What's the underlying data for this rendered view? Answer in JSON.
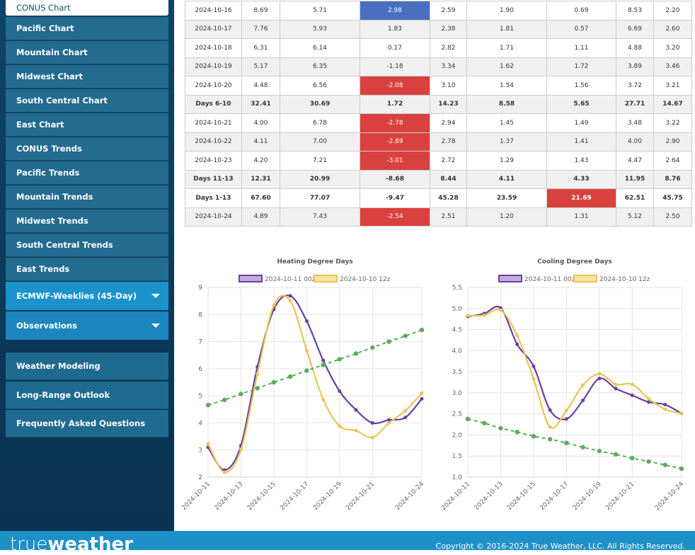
{
  "sidebar": {
    "active": "CONUS Chart",
    "items": [
      "Pacific Chart",
      "Mountain Chart",
      "Midwest Chart",
      "South Central Chart",
      "East Chart",
      "CONUS Trends",
      "Pacific Trends",
      "Mountain Trends",
      "Midwest Trends",
      "South Central Trends",
      "East Trends"
    ],
    "dropdowns": [
      "ECMWF-Weeklies (45-Day)",
      "Observations"
    ],
    "links": [
      "Weather Modeling",
      "Long-Range Outlook",
      "Frequently Asked Questions"
    ]
  },
  "table": {
    "rows": [
      {
        "cells": [
          "2024-10-16",
          "8.69",
          "5.71",
          {
            "text": "2.98",
            "color": "#4a6fc0"
          },
          "2.59",
          "1.90",
          "0.69",
          "8.53",
          "2.20"
        ]
      },
      {
        "cells": [
          "2024-10-17",
          "7.76",
          "5.93",
          "1.83",
          "2.38",
          "1.81",
          "0.57",
          "6.69",
          "2.60"
        ]
      },
      {
        "cells": [
          "2024-10-18",
          "6.31",
          "6.14",
          "0.17",
          "2.82",
          "1.71",
          "1.11",
          "4.88",
          "3.20"
        ]
      },
      {
        "cells": [
          "2024-10-19",
          "5.17",
          "6.35",
          "-1.18",
          "3.34",
          "1.62",
          "1.72",
          "3.89",
          "3.46"
        ]
      },
      {
        "cells": [
          "2024-10-20",
          "4.48",
          "6.56",
          {
            "text": "-2.08",
            "color": "#d9413f"
          },
          "3.10",
          "1.54",
          "1.56",
          "3.72",
          "3.21"
        ]
      },
      {
        "cells": [
          "Days 6-10",
          "32.41",
          "30.69",
          "1.72",
          "14.23",
          "8.58",
          "5.65",
          "27.71",
          "14.67"
        ],
        "bold": true
      },
      {
        "cells": [
          "2024-10-21",
          "4.00",
          "6.78",
          {
            "text": "-2.78",
            "color": "#d9413f"
          },
          "2.94",
          "1.45",
          "1.49",
          "3.48",
          "3.22"
        ]
      },
      {
        "cells": [
          "2024-10-22",
          "4.11",
          "7.00",
          {
            "text": "-2.89",
            "color": "#d9413f"
          },
          "2.78",
          "1.37",
          "1.41",
          "4.00",
          "2.90"
        ]
      },
      {
        "cells": [
          "2024-10-23",
          "4.20",
          "7.21",
          {
            "text": "-3.01",
            "color": "#d9413f"
          },
          "2.72",
          "1.29",
          "1.43",
          "4.47",
          "2.64"
        ]
      },
      {
        "cells": [
          "Days 11-13",
          "12.31",
          "20.99",
          "-8.68",
          "8.44",
          "4.11",
          "4.33",
          "11.95",
          "8.76"
        ],
        "bold": true
      },
      {
        "cells": [
          "Days 1-13",
          "67.60",
          "77.07",
          "-9.47",
          "45.28",
          "23.59",
          {
            "text": "21.69",
            "color": "#d9413f"
          },
          "62.51",
          "45.75"
        ],
        "bold": true
      },
      {
        "cells": [
          "2024-10-24",
          "4.89",
          "7.43",
          {
            "text": "-2.54",
            "color": "#d9413f"
          },
          "2.51",
          "1.20",
          "1.31",
          "5.12",
          "2.50"
        ]
      }
    ]
  },
  "chart_data": [
    {
      "type": "line",
      "title": "Heating Degree Days",
      "categories": [
        "2024-10-11",
        null,
        "2024-10-13",
        null,
        "2024-10-15",
        null,
        "2024-10-17",
        null,
        "2024-10-19",
        null,
        "2024-10-21",
        null,
        null,
        "2024-10-24"
      ],
      "series": [
        {
          "name": "2024-10-11 00z",
          "color": "#6a3fa0",
          "fill": "#c3addf",
          "values": [
            3.1,
            2.26,
            3.17,
            6.07,
            8.19,
            8.69,
            7.76,
            6.31,
            5.17,
            4.48,
            4.0,
            4.11,
            4.2,
            4.89
          ]
        },
        {
          "name": "2024-10-10 12z",
          "color": "#e8c558",
          "fill": "#f6e3a6",
          "values": [
            3.23,
            2.18,
            3.02,
            5.81,
            8.34,
            8.5,
            6.67,
            4.87,
            3.88,
            3.72,
            3.46,
            4.0,
            4.45,
            5.1
          ]
        },
        {
          "color": "#5aad5a",
          "dashed": true,
          "values": [
            4.66,
            4.85,
            5.07,
            5.28,
            5.5,
            5.71,
            5.93,
            6.14,
            6.35,
            6.56,
            6.78,
            7.0,
            7.21,
            7.43
          ]
        }
      ],
      "ylim": [
        2,
        9
      ],
      "yticks": [
        2,
        3,
        4,
        5,
        6,
        7,
        8,
        9
      ],
      "grid": true
    },
    {
      "type": "line",
      "title": "Cooling Degree Days",
      "categories": [
        "2024-10-11",
        null,
        "2024-10-13",
        null,
        "2024-10-15",
        null,
        "2024-10-17",
        null,
        "2024-10-19",
        null,
        "2024-10-21",
        null,
        null,
        "2024-10-24"
      ],
      "series": [
        {
          "name": "2024-10-11 00z",
          "color": "#6a3fa0",
          "fill": "#c3addf",
          "values": [
            4.81,
            4.88,
            5.01,
            4.15,
            3.63,
            2.59,
            2.38,
            2.82,
            3.34,
            3.1,
            2.94,
            2.78,
            2.72,
            2.51
          ]
        },
        {
          "name": "2024-10-10 12z",
          "color": "#e8c558",
          "fill": "#f6e3a6",
          "values": [
            4.83,
            4.84,
            4.96,
            4.36,
            3.33,
            2.19,
            2.58,
            3.18,
            3.45,
            3.2,
            3.2,
            2.86,
            2.61,
            2.51
          ]
        },
        {
          "color": "#5aad5a",
          "dashed": true,
          "values": [
            2.38,
            2.28,
            2.16,
            2.07,
            1.97,
            1.9,
            1.81,
            1.71,
            1.62,
            1.54,
            1.45,
            1.37,
            1.29,
            1.2
          ]
        }
      ],
      "ylim": [
        1,
        5.5
      ],
      "yticks": [
        {
          "value": 1,
          "label": "1.0"
        },
        1.5,
        {
          "value": 2,
          "label": "2.0"
        },
        2.5,
        {
          "value": 3,
          "label": "3.0"
        },
        3.5,
        {
          "value": 4,
          "label": "4.0"
        },
        4.5,
        {
          "value": 5,
          "label": "5.0"
        },
        5.5
      ],
      "grid": true
    }
  ],
  "footer": {
    "logo": [
      "true",
      "weather"
    ],
    "copyright": "Copyright © 2016-2024 True Weather, LLC. All Rights Reserved."
  }
}
